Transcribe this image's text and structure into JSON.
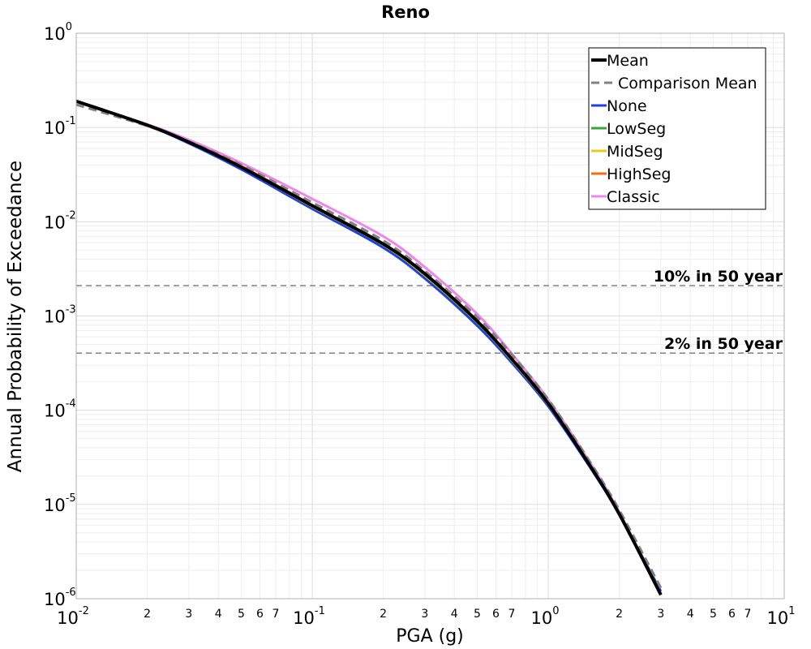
{
  "chart_data": {
    "type": "line",
    "title": "Reno",
    "xlabel": "PGA (g)",
    "ylabel": "Annual Probability of Exceedance",
    "xscale": "log",
    "yscale": "log",
    "xlim": [
      0.01,
      10
    ],
    "ylim": [
      1e-06,
      1
    ],
    "grid": true,
    "legend_position": "top-right",
    "x_major_ticks": [
      {
        "value": 0.01,
        "base": "10",
        "exp": "-2"
      },
      {
        "value": 0.1,
        "base": "10",
        "exp": "-1"
      },
      {
        "value": 1,
        "base": "10",
        "exp": "0"
      },
      {
        "value": 10,
        "base": "10",
        "exp": "1"
      }
    ],
    "x_minor_ticks": [
      {
        "value": 0.02,
        "label": "2"
      },
      {
        "value": 0.03,
        "label": "3"
      },
      {
        "value": 0.04,
        "label": "4"
      },
      {
        "value": 0.05,
        "label": "5"
      },
      {
        "value": 0.06,
        "label": "6"
      },
      {
        "value": 0.07,
        "label": "7"
      },
      {
        "value": 0.2,
        "label": "2"
      },
      {
        "value": 0.3,
        "label": "3"
      },
      {
        "value": 0.4,
        "label": "4"
      },
      {
        "value": 0.5,
        "label": "5"
      },
      {
        "value": 0.6,
        "label": "6"
      },
      {
        "value": 0.7,
        "label": "7"
      },
      {
        "value": 2,
        "label": "2"
      },
      {
        "value": 3,
        "label": "3"
      },
      {
        "value": 4,
        "label": "4"
      },
      {
        "value": 5,
        "label": "5"
      },
      {
        "value": 6,
        "label": "6"
      },
      {
        "value": 7,
        "label": "7"
      }
    ],
    "y_major_ticks": [
      {
        "value": 1,
        "base": "10",
        "exp": "0"
      },
      {
        "value": 0.1,
        "base": "10",
        "exp": "-1"
      },
      {
        "value": 0.01,
        "base": "10",
        "exp": "-2"
      },
      {
        "value": 0.001,
        "base": "10",
        "exp": "-3"
      },
      {
        "value": 0.0001,
        "base": "10",
        "exp": "-4"
      },
      {
        "value": 1e-05,
        "base": "10",
        "exp": "-5"
      },
      {
        "value": 1e-06,
        "base": "10",
        "exp": "-6"
      }
    ],
    "reference_lines": [
      {
        "y": 0.0021,
        "label": "10% in 50 year",
        "color": "#808080",
        "dash": "dashed"
      },
      {
        "y": 0.000404,
        "label": "2% in 50 year",
        "color": "#808080",
        "dash": "dashed"
      }
    ],
    "x": [
      0.01,
      0.02,
      0.03,
      0.05,
      0.1,
      0.2,
      0.3,
      0.5,
      0.7,
      1.0,
      1.5,
      2.0,
      3.0
    ],
    "series": [
      {
        "name": "None",
        "color": "#1f3fdf",
        "style": "solid",
        "values": [
          0.19,
          0.105,
          0.068,
          0.036,
          0.0137,
          0.0053,
          0.0025,
          0.00079,
          0.00032,
          0.00011,
          2.5e-05,
          7.8e-06,
          1.2e-06
        ]
      },
      {
        "name": "LowSeg",
        "color": "#3aa63a",
        "style": "solid",
        "values": [
          0.19,
          0.106,
          0.07,
          0.038,
          0.0145,
          0.0057,
          0.0027,
          0.00085,
          0.00034,
          0.000115,
          2.6e-05,
          7.9e-06,
          1.1e-06
        ]
      },
      {
        "name": "MidSeg",
        "color": "#e5cc20",
        "style": "solid",
        "values": [
          0.19,
          0.106,
          0.07,
          0.038,
          0.0145,
          0.0057,
          0.0027,
          0.00086,
          0.00034,
          0.000116,
          2.6e-05,
          7.9e-06,
          1.1e-06
        ]
      },
      {
        "name": "HighSeg",
        "color": "#f26a1b",
        "style": "solid",
        "values": [
          0.19,
          0.107,
          0.07,
          0.039,
          0.015,
          0.0058,
          0.0028,
          0.00088,
          0.00035,
          0.000118,
          2.6e-05,
          7.9e-06,
          1.1e-06
        ]
      },
      {
        "name": "Classic",
        "color": "#ee88e8",
        "style": "solid",
        "values": [
          0.19,
          0.108,
          0.074,
          0.042,
          0.0175,
          0.007,
          0.0033,
          0.00105,
          0.0004,
          0.00013,
          2.8e-05,
          8.3e-06,
          1.1e-06
        ]
      },
      {
        "name": "Comparison Mean",
        "color": "#808080",
        "style": "dashed",
        "values": [
          0.175,
          0.104,
          0.071,
          0.04,
          0.016,
          0.0063,
          0.003,
          0.00097,
          0.00039,
          0.00013,
          2.85e-05,
          8.7e-06,
          1.3e-06
        ]
      },
      {
        "name": "Mean",
        "color": "#000000",
        "style": "solid",
        "values": [
          0.19,
          0.106,
          0.07,
          0.038,
          0.0148,
          0.0058,
          0.0028,
          0.00088,
          0.00035,
          0.000118,
          2.6e-05,
          7.9e-06,
          1.1e-06
        ]
      }
    ],
    "legend": [
      {
        "name": "Mean",
        "color": "#000000",
        "style": "solid"
      },
      {
        "name": "Comparison Mean",
        "color": "#808080",
        "style": "dashed"
      },
      {
        "name": "None",
        "color": "#1f3fdf",
        "style": "solid"
      },
      {
        "name": "LowSeg",
        "color": "#3aa63a",
        "style": "solid"
      },
      {
        "name": "MidSeg",
        "color": "#e5cc20",
        "style": "solid"
      },
      {
        "name": "HighSeg",
        "color": "#f26a1b",
        "style": "solid"
      },
      {
        "name": "Classic",
        "color": "#ee88e8",
        "style": "solid"
      }
    ]
  }
}
